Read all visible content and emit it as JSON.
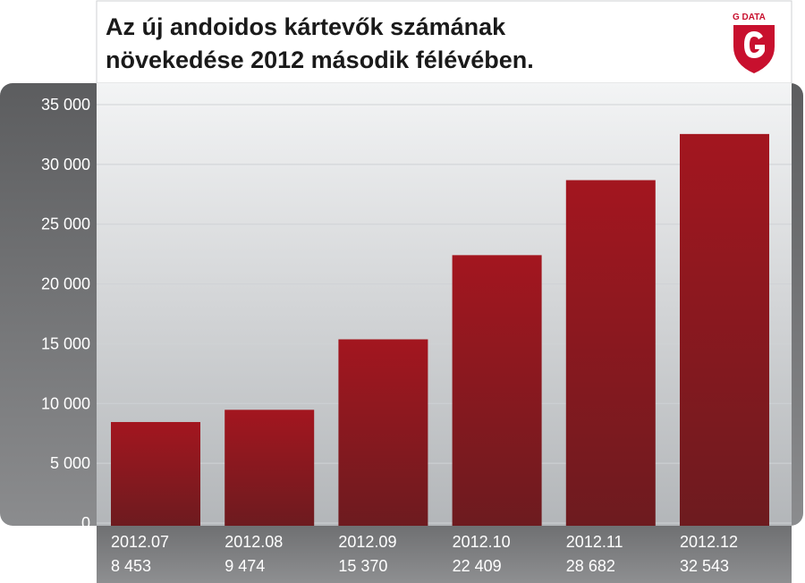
{
  "title": {
    "line1": "Az új andoidos kártevők számának",
    "line2": "növekedése 2012 második félévében."
  },
  "logo": {
    "text": "G DATA",
    "icon": "g-data-shield-logo",
    "color": "#c8102e"
  },
  "colors": {
    "bar_top": "#a0161f",
    "bar_bottom": "#6f1a1e",
    "plot_bg_top": "#f2f3f4",
    "plot_bg_bottom": "#b6b9bc",
    "outer_panel": "#6a6b6d",
    "tick_text": "#ffffff"
  },
  "chart_data": {
    "type": "bar",
    "title": "Az új andoidos kártevők számának növekedése 2012 második félévében.",
    "categories": [
      "2012.07",
      "2012.08",
      "2012.09",
      "2012.10",
      "2012.11",
      "2012.12"
    ],
    "value_labels": [
      "8 453",
      "9 474",
      "15 370",
      "22 409",
      "28 682",
      "32 543"
    ],
    "values": [
      8453,
      9474,
      15370,
      22409,
      28682,
      32543
    ],
    "ylim": [
      0,
      35000
    ],
    "yticks": [
      0,
      5000,
      10000,
      15000,
      20000,
      25000,
      30000,
      35000
    ],
    "ytick_labels": [
      "0",
      "5 000",
      "10 000",
      "15 000",
      "20 000",
      "25 000",
      "30 000",
      "35 000"
    ],
    "grid": true,
    "legend": "none"
  }
}
